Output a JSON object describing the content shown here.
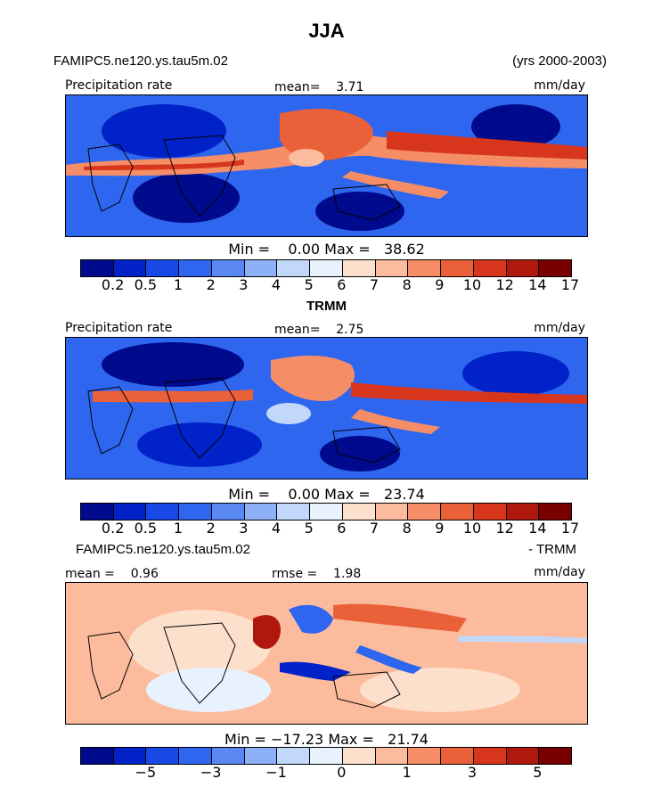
{
  "season": "JJA",
  "run_name": "FAMIPC5.ne120.ys.tau5m.02",
  "years": "(yrs 2000-2003)",
  "panels": [
    {
      "variable": "Precipitation rate",
      "units": "mm/day",
      "mean_label": "mean=",
      "mean_value": "3.71",
      "min_label": "Min =",
      "min_value": "0.00",
      "max_label": "Max =",
      "max_value": "38.62",
      "levels": [
        "0.2",
        "0.5",
        "1",
        "2",
        "3",
        "4",
        "5",
        "6",
        "7",
        "8",
        "9",
        "10",
        "12",
        "14",
        "17"
      ]
    },
    {
      "caption": "TRMM",
      "variable": "Precipitation rate",
      "units": "mm/day",
      "mean_label": "mean=",
      "mean_value": "2.75",
      "min_label": "Min =",
      "min_value": "0.00",
      "max_label": "Max =",
      "max_value": "23.74",
      "levels": [
        "0.2",
        "0.5",
        "1",
        "2",
        "3",
        "4",
        "5",
        "6",
        "7",
        "8",
        "9",
        "10",
        "12",
        "14",
        "17"
      ]
    },
    {
      "caption_left": "FAMIPC5.ne120.ys.tau5m.02",
      "caption_right": "- TRMM",
      "units": "mm/day",
      "mean_label": "mean =",
      "mean_value": "0.96",
      "rmse_label": "rmse =",
      "rmse_value": "1.98",
      "min_label": "Min =",
      "min_value": "−17.23",
      "max_label": "Max =",
      "max_value": "21.74",
      "levels": [
        "−5",
        "−3",
        "−1",
        "0",
        "1",
        "3",
        "5"
      ]
    }
  ],
  "colorbar_precip": [
    "#000a8c",
    "#0022c8",
    "#1848e6",
    "#2e66f0",
    "#5a88f2",
    "#8eb0f6",
    "#c2d8fa",
    "#e8f2fe",
    "#fde0cc",
    "#fbbb9c",
    "#f58e66",
    "#ea6038",
    "#d8361c",
    "#b0180e",
    "#7a0000"
  ],
  "colorbar_diff": [
    "#000a8c",
    "#0022c8",
    "#1848e6",
    "#2e66f0",
    "#5a88f2",
    "#8eb0f6",
    "#c2d8fa",
    "#e8f2fe",
    "#fde0cc",
    "#fbbb9c",
    "#f58e66",
    "#ea6038",
    "#d8361c",
    "#b0180e",
    "#7a0000"
  ]
}
